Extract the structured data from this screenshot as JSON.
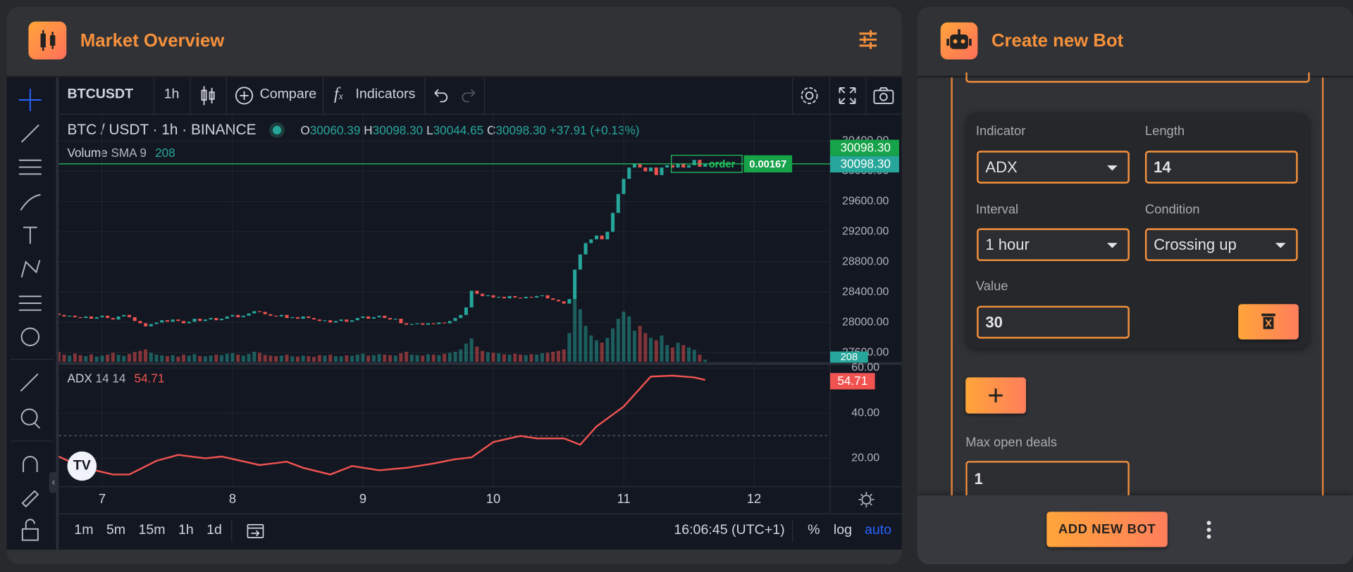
{
  "market_panel": {
    "title": "Market Overview"
  },
  "bot_panel": {
    "title": "Create new Bot"
  },
  "chart_toolbar": {
    "symbol": "BTCUSDT",
    "interval": "1h",
    "compare": "Compare",
    "indicators": "Indicators"
  },
  "legend": {
    "pair": "BTC / USDT",
    "interval": "1h",
    "exchange": "BINANCE",
    "ohlc": [
      {
        "key": "O",
        "value": "30060.39"
      },
      {
        "key": "H",
        "value": "30098.30"
      },
      {
        "key": "L",
        "value": "30044.65"
      },
      {
        "key": "C",
        "value": "30098.30"
      }
    ],
    "change": "+37.91 (+0.13%)",
    "volume": "Volume",
    "volume_study": "SMA 9",
    "volume_value": "208",
    "adx": "ADX",
    "adx_params": "14 14",
    "adx_value": "54.71"
  },
  "chart_data": [
    {
      "type": "candlestick",
      "up_color": "#26a69a",
      "down_color": "#ef5350",
      "open": [
        28120,
        28100,
        28080,
        28090,
        28070,
        28060,
        28080,
        28050,
        28070,
        28090,
        28060,
        28040,
        28080,
        28100,
        28070,
        28020,
        27990,
        27950,
        27980,
        28000,
        28030,
        28010,
        28040,
        28020,
        27990,
        28010,
        28050,
        28020,
        28040,
        28060,
        28030,
        28050,
        28080,
        28100,
        28070,
        28090,
        28120,
        28150,
        28140,
        28110,
        28090,
        28080,
        28100,
        28060,
        28070,
        28050,
        28080,
        28060,
        28040,
        28020,
        28030,
        28000,
        28020,
        28040,
        28010,
        28030,
        28060,
        28080,
        28050,
        28070,
        28090,
        28060,
        28040,
        28050,
        27990,
        27970,
        27980,
        27990,
        27970,
        27990,
        27980,
        28000,
        27990,
        28020,
        28060,
        28100,
        28200,
        28420,
        28380,
        28350,
        28360,
        28330,
        28340,
        28320,
        28350,
        28330,
        28320,
        28340,
        28330,
        28350,
        28360,
        28320,
        28300,
        28280,
        28250,
        28310,
        28700,
        28900,
        29050,
        29100,
        29150,
        29100,
        29200,
        29450,
        29700,
        29900,
        30050,
        30100,
        30050,
        30000,
        30050,
        29950,
        30050,
        30080,
        30050,
        30100,
        30050,
        30080,
        30150,
        30060.39
      ],
      "close": [
        28100,
        28080,
        28090,
        28070,
        28060,
        28080,
        28050,
        28070,
        28090,
        28060,
        28040,
        28080,
        28100,
        28070,
        28020,
        27990,
        27950,
        27980,
        28000,
        28030,
        28010,
        28040,
        28020,
        27990,
        28010,
        28050,
        28020,
        28040,
        28060,
        28030,
        28050,
        28080,
        28100,
        28070,
        28090,
        28120,
        28150,
        28140,
        28110,
        28090,
        28080,
        28100,
        28060,
        28070,
        28050,
        28080,
        28060,
        28040,
        28020,
        28030,
        28000,
        28020,
        28040,
        28010,
        28030,
        28060,
        28080,
        28050,
        28070,
        28090,
        28060,
        28040,
        28050,
        27990,
        27970,
        27980,
        27990,
        27970,
        27990,
        27980,
        28000,
        27990,
        28020,
        28060,
        28100,
        28200,
        28420,
        28380,
        28350,
        28360,
        28330,
        28340,
        28320,
        28350,
        28330,
        28320,
        28340,
        28330,
        28350,
        28360,
        28320,
        28300,
        28280,
        28250,
        28310,
        28700,
        28900,
        29050,
        29100,
        29150,
        29100,
        29200,
        29450,
        29700,
        29900,
        30050,
        30100,
        30050,
        30000,
        30050,
        29950,
        30050,
        30080,
        30050,
        30100,
        30050,
        30080,
        30150,
        30060.39,
        30098.3
      ],
      "volume": [
        420,
        300,
        260,
        350,
        280,
        240,
        310,
        220,
        260,
        300,
        380,
        290,
        250,
        330,
        410,
        460,
        520,
        380,
        300,
        270,
        240,
        280,
        220,
        300,
        260,
        320,
        240,
        230,
        260,
        300,
        280,
        340,
        360,
        300,
        260,
        330,
        420,
        380,
        290,
        260,
        240,
        260,
        300,
        230,
        220,
        260,
        240,
        210,
        280,
        260,
        300,
        240,
        230,
        270,
        250,
        300,
        340,
        260,
        280,
        320,
        300,
        280,
        260,
        360,
        420,
        300,
        280,
        260,
        320,
        300,
        280,
        340,
        380,
        420,
        520,
        760,
        980,
        640,
        460,
        400,
        380,
        360,
        320,
        300,
        340,
        300,
        280,
        320,
        300,
        360,
        380,
        420,
        460,
        520,
        1200,
        2800,
        2200,
        1500,
        1100,
        900,
        800,
        1000,
        1400,
        1800,
        2100,
        1900,
        1300,
        1500,
        1200,
        1000,
        900,
        1100,
        700,
        600,
        800,
        700,
        600,
        500,
        300,
        90
      ],
      "order_line": 30098.3,
      "xlim": [
        0,
        142
      ],
      "xticks": [
        {
          "value": 8,
          "label": "7"
        },
        {
          "value": 32,
          "label": "8"
        },
        {
          "value": 56,
          "label": "9"
        },
        {
          "value": 80,
          "label": "10"
        },
        {
          "value": 104,
          "label": "11"
        },
        {
          "value": 128,
          "label": "12"
        }
      ],
      "ylim": [
        27480,
        30750
      ],
      "yticks": [
        {
          "value": 27600,
          "label": "27600.00"
        },
        {
          "value": 28000,
          "label": "28000.00"
        },
        {
          "value": 28400,
          "label": "28400.00"
        },
        {
          "value": 28800,
          "label": "28800.00"
        },
        {
          "value": 29200,
          "label": "29200.00"
        },
        {
          "value": 29600,
          "label": "29600.00"
        },
        {
          "value": 30000,
          "label": "30000.00"
        },
        {
          "value": 30400,
          "label": "30400.00"
        }
      ],
      "grid": true
    },
    {
      "type": "line",
      "color": "#f05350",
      "x": [
        0,
        3,
        7,
        10,
        13,
        18,
        22,
        27,
        30,
        37,
        42,
        45,
        50,
        54,
        59,
        64,
        69,
        73,
        76,
        80,
        85,
        88,
        93,
        96,
        99,
        104,
        109,
        113,
        117,
        119
      ],
      "values": [
        20.8,
        17.5,
        14.5,
        12.8,
        12.8,
        18.9,
        21.5,
        20,
        20.8,
        17,
        18.5,
        15.8,
        12.8,
        16.6,
        14.7,
        15.8,
        17.7,
        19.6,
        20.4,
        27.2,
        29.9,
        28.8,
        28.8,
        26,
        34.1,
        42.9,
        56.2,
        56.6,
        55.8,
        54.71
      ],
      "reference_line": 30,
      "xlim": [
        0,
        142
      ],
      "ylim": [
        7.4,
        60.8
      ],
      "yticks": [
        {
          "value": 20,
          "label": "20.00"
        },
        {
          "value": 40,
          "label": "40.00"
        },
        {
          "value": 60,
          "label": "60.00"
        }
      ],
      "grid": true
    }
  ],
  "order": {
    "label": "order",
    "quantity": "0.00167"
  },
  "price_labels": {
    "order_price": "30098.30",
    "last_price": "30098.30",
    "volume": "208",
    "adx": "54.71"
  },
  "bottom_toolbar": {
    "ranges": [
      "1m",
      "5m",
      "15m",
      "1h",
      "1d"
    ],
    "time": "16:06:45 (UTC+1)",
    "percent": "%",
    "log": "log",
    "auto": "auto"
  },
  "form": {
    "condition": {
      "indicator_label": "Indicator",
      "indicator": "ADX",
      "length_label": "Length",
      "length": "14",
      "interval_label": "Interval",
      "interval": "1 hour",
      "condition_label": "Condition",
      "condition": "Crossing up",
      "value_label": "Value",
      "value": "30"
    },
    "max_deals_label": "Max open deals",
    "max_deals": "1",
    "submit": "ADD NEW BOT"
  }
}
